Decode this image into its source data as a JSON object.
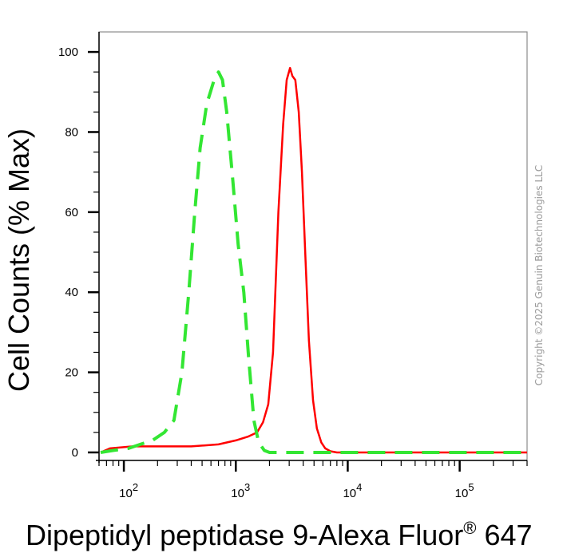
{
  "chart_data": {
    "type": "line",
    "xlabel_main": "Dipeptidyl peptidase 9-Alexa Fluor",
    "xlabel_reg": "®",
    "xlabel_tail": " 647",
    "ylabel": "Cell Counts (% Max)",
    "x_scale": "log",
    "xlim": [
      60,
      400000
    ],
    "ylim": [
      -2,
      105
    ],
    "x_ticks": [
      {
        "base": "10",
        "exp": "2",
        "value": 100
      },
      {
        "base": "10",
        "exp": "3",
        "value": 1000
      },
      {
        "base": "10",
        "exp": "4",
        "value": 10000
      },
      {
        "base": "10",
        "exp": "5",
        "value": 100000
      }
    ],
    "y_ticks": [
      "0",
      "20",
      "40",
      "60",
      "80",
      "100"
    ],
    "y_tick_values": [
      0,
      20,
      40,
      60,
      80,
      100
    ],
    "grid": false,
    "series": [
      {
        "color": "#ff0000",
        "style": "solid",
        "points": [
          [
            62,
            0
          ],
          [
            75,
            1
          ],
          [
            120,
            1.5
          ],
          [
            200,
            1.5
          ],
          [
            400,
            1.5
          ],
          [
            700,
            2
          ],
          [
            1000,
            3
          ],
          [
            1300,
            4
          ],
          [
            1550,
            5
          ],
          [
            1750,
            7.5
          ],
          [
            1950,
            12
          ],
          [
            2150,
            25
          ],
          [
            2400,
            60
          ],
          [
            2650,
            82
          ],
          [
            2850,
            93
          ],
          [
            3050,
            96
          ],
          [
            3200,
            94
          ],
          [
            3400,
            93
          ],
          [
            3650,
            85
          ],
          [
            3900,
            70
          ],
          [
            4200,
            48
          ],
          [
            4500,
            28
          ],
          [
            4900,
            13
          ],
          [
            5300,
            6
          ],
          [
            5800,
            2.5
          ],
          [
            6300,
            1
          ],
          [
            7000,
            0.3
          ],
          [
            8000,
            0
          ],
          [
            400000,
            0
          ]
        ]
      },
      {
        "color": "#33e633",
        "style": "dashed",
        "points": [
          [
            62,
            0
          ],
          [
            80,
            0.5
          ],
          [
            110,
            1
          ],
          [
            140,
            2
          ],
          [
            180,
            3
          ],
          [
            230,
            5
          ],
          [
            280,
            8
          ],
          [
            330,
            20
          ],
          [
            380,
            40
          ],
          [
            430,
            60
          ],
          [
            480,
            76
          ],
          [
            550,
            87
          ],
          [
            640,
            93
          ],
          [
            700,
            95
          ],
          [
            760,
            93
          ],
          [
            830,
            85
          ],
          [
            940,
            68
          ],
          [
            1050,
            52
          ],
          [
            1180,
            40
          ],
          [
            1300,
            24
          ],
          [
            1450,
            8
          ],
          [
            1600,
            2.5
          ],
          [
            1800,
            0.5
          ],
          [
            2000,
            0
          ],
          [
            400000,
            0
          ]
        ]
      }
    ]
  },
  "watermark": "Copyright ©2025 Genuin Biotechnologies LLC"
}
